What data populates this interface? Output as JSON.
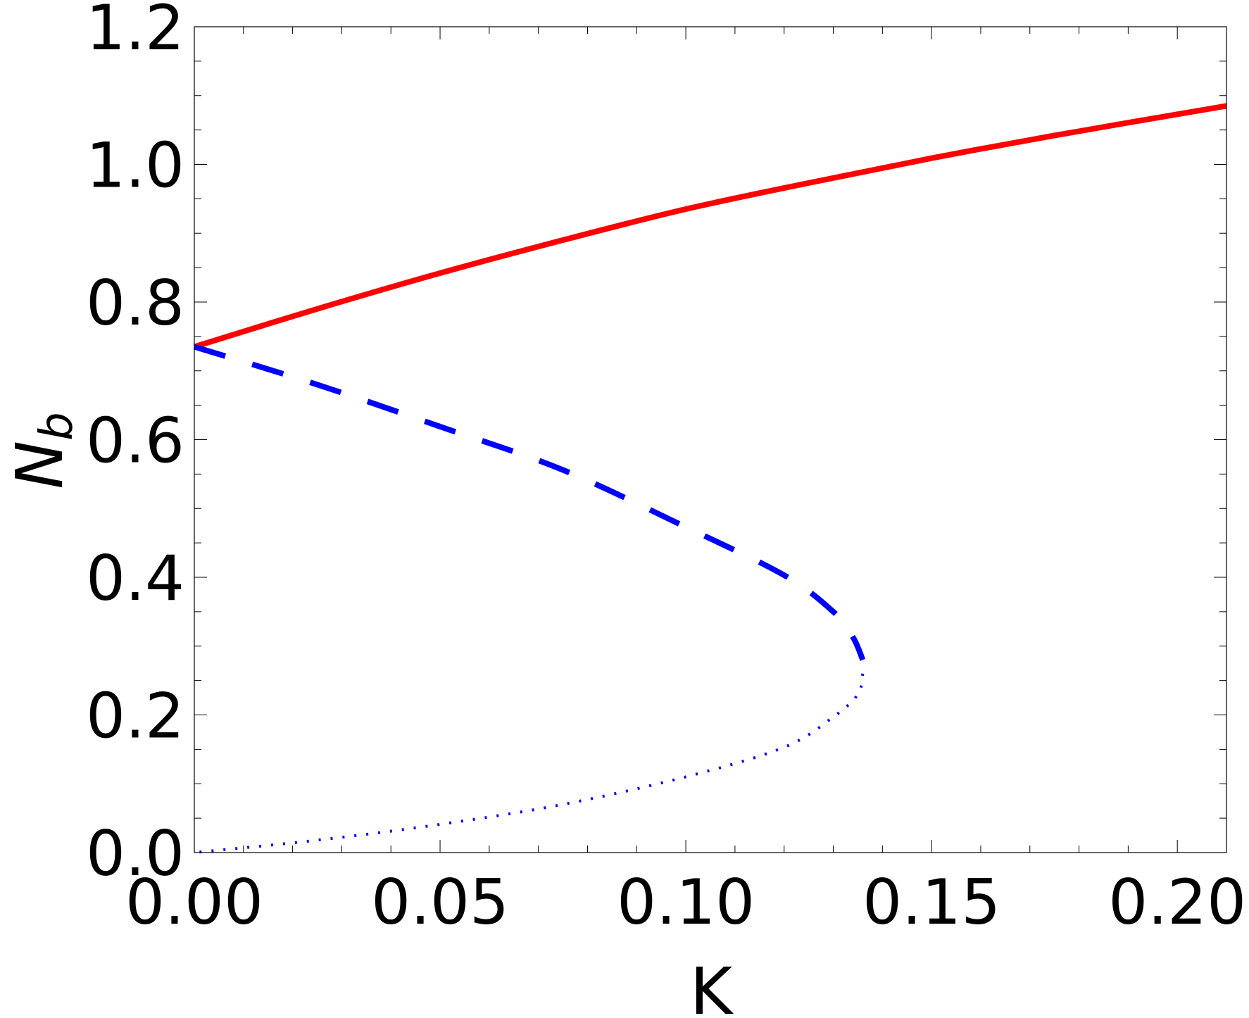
{
  "chart_data": {
    "type": "line",
    "title": "",
    "xlabel": "K",
    "ylabel_main": "N",
    "ylabel_sub": "b",
    "xlim": [
      0,
      0.21
    ],
    "ylim": [
      0,
      1.2
    ],
    "xticks": [
      0.0,
      0.05,
      0.1,
      0.15,
      0.2
    ],
    "xtick_labels": [
      "0.00",
      "0.05",
      "0.10",
      "0.15",
      "0.20"
    ],
    "yticks": [
      0.0,
      0.2,
      0.4,
      0.6,
      0.8,
      1.0,
      1.2
    ],
    "ytick_labels": [
      "0.0",
      "0.2",
      "0.4",
      "0.6",
      "0.8",
      "1.0",
      "1.2"
    ],
    "grid": false,
    "series": [
      {
        "style": "solid",
        "color": "#ff0000",
        "x": [
          0,
          0.025,
          0.05,
          0.075,
          0.1,
          0.125,
          0.15,
          0.175,
          0.21
        ],
        "y": [
          0.735,
          0.79,
          0.842,
          0.89,
          0.935,
          0.973,
          1.009,
          1.042,
          1.085
        ]
      },
      {
        "style": "dashed",
        "color": "#0000ff",
        "x": [
          0,
          0.025,
          0.05,
          0.075,
          0.1,
          0.12,
          0.13,
          0.134,
          0.136
        ],
        "y": [
          0.735,
          0.68,
          0.619,
          0.556,
          0.473,
          0.403,
          0.35,
          0.313,
          0.28
        ]
      },
      {
        "style": "dotted",
        "color": "#0000ff",
        "x": [
          0.136,
          0.135,
          0.13,
          0.12,
          0.1,
          0.075,
          0.05,
          0.025,
          0
        ],
        "y": [
          0.26,
          0.23,
          0.197,
          0.153,
          0.11,
          0.07,
          0.041,
          0.018,
          0
        ]
      }
    ]
  }
}
